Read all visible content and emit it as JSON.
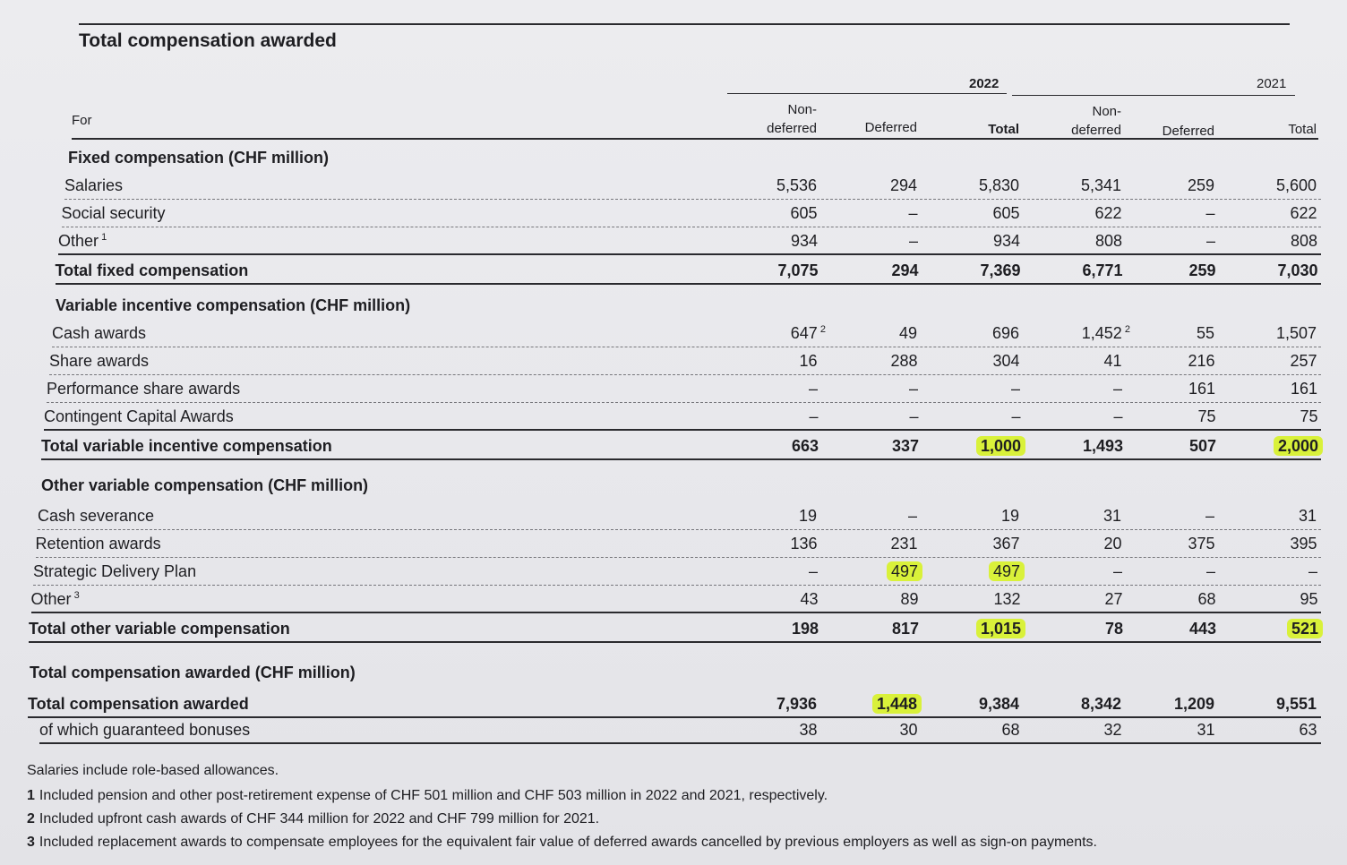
{
  "title": "Total compensation awarded",
  "years": [
    "2022",
    "2021"
  ],
  "columns": [
    "Non-\ndeferred",
    "Deferred",
    "Total",
    "Non-\ndeferred",
    "Deferred",
    "Total"
  ],
  "for_label": "For",
  "sections": [
    {
      "title": "Fixed compensation (CHF million)",
      "rows": [
        {
          "label": "Salaries",
          "values": [
            "5,536",
            "294",
            "5,830",
            "5,341",
            "259",
            "5,600"
          ]
        },
        {
          "label": "Social security",
          "values": [
            "605",
            "–",
            "605",
            "622",
            "–",
            "622"
          ]
        },
        {
          "label": "Other",
          "sup": "1",
          "values": [
            "934",
            "–",
            "934",
            "808",
            "–",
            "808"
          ]
        },
        {
          "label": "Total fixed compensation",
          "total": true,
          "values": [
            "7,075",
            "294",
            "7,369",
            "6,771",
            "259",
            "7,030"
          ]
        }
      ]
    },
    {
      "title": "Variable incentive compensation (CHF million)",
      "rows": [
        {
          "label": "Cash awards",
          "values": [
            "647",
            "49",
            "696",
            "1,452",
            "55",
            "1,507"
          ],
          "sups": [
            "2",
            "",
            "",
            "2",
            "",
            ""
          ]
        },
        {
          "label": "Share awards",
          "values": [
            "16",
            "288",
            "304",
            "41",
            "216",
            "257"
          ]
        },
        {
          "label": "Performance share awards",
          "values": [
            "–",
            "–",
            "–",
            "–",
            "161",
            "161"
          ]
        },
        {
          "label": "Contingent Capital Awards",
          "values": [
            "–",
            "–",
            "–",
            "–",
            "75",
            "75"
          ]
        },
        {
          "label": "Total variable incentive compensation",
          "total": true,
          "values": [
            "663",
            "337",
            "1,000",
            "1,493",
            "507",
            "2,000"
          ],
          "highlight": [
            2,
            5
          ]
        }
      ]
    },
    {
      "title": "Other variable compensation (CHF million)",
      "rows": [
        {
          "label": "Cash severance",
          "values": [
            "19",
            "–",
            "19",
            "31",
            "–",
            "31"
          ]
        },
        {
          "label": "Retention awards",
          "values": [
            "136",
            "231",
            "367",
            "20",
            "375",
            "395"
          ]
        },
        {
          "label": "Strategic Delivery Plan",
          "values": [
            "–",
            "497",
            "497",
            "–",
            "–",
            "–"
          ],
          "highlight": [
            1,
            2
          ]
        },
        {
          "label": "Other",
          "sup": "3",
          "values": [
            "43",
            "89",
            "132",
            "27",
            "68",
            "95"
          ]
        },
        {
          "label": "Total other variable compensation",
          "total": true,
          "values": [
            "198",
            "817",
            "1,015",
            "78",
            "443",
            "521"
          ],
          "highlight": [
            2,
            5
          ]
        }
      ]
    },
    {
      "title": "Total compensation awarded (CHF million)",
      "rows": [
        {
          "label": "Total compensation awarded",
          "total": true,
          "values": [
            "7,936",
            "1,448",
            "9,384",
            "8,342",
            "1,209",
            "9,551"
          ],
          "highlight": [
            1
          ]
        },
        {
          "label": "of which guaranteed bonuses",
          "indent": true,
          "values": [
            "38",
            "30",
            "68",
            "32",
            "31",
            "63"
          ]
        }
      ]
    }
  ],
  "footnotes": [
    {
      "num": "",
      "text": "Salaries include role-based allowances."
    },
    {
      "num": "1",
      "text": "Included pension and other post-retirement expense of CHF 501 million and CHF 503 million in 2022 and 2021, respectively."
    },
    {
      "num": "2",
      "text": "Included upfront cash awards of CHF 344 million for 2022 and CHF 799 million for 2021."
    },
    {
      "num": "3",
      "text": "Included replacement awards to compensate employees for the equivalent fair value of deferred awards cancelled by previous employers as well as sign-on payments."
    }
  ],
  "colors": {
    "highlight": "#d9f13a",
    "ink": "#1e1e22",
    "paper": "#e9e9ec"
  }
}
